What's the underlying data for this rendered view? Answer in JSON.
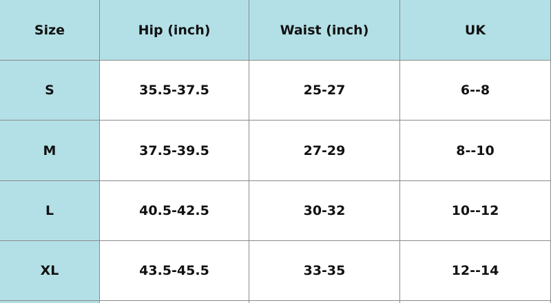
{
  "table": {
    "header": [
      "Size",
      "Hip (inch)",
      "Waist (inch)",
      "UK"
    ],
    "rows": [
      [
        "S",
        "35.5-37.5",
        "25-27",
        "6--8"
      ],
      [
        "M",
        "37.5-39.5",
        "27-29",
        "8--10"
      ],
      [
        "L",
        "40.5-42.5",
        "30-32",
        "10--12"
      ],
      [
        "XL",
        "43.5-45.5",
        "33-35",
        "12--14"
      ]
    ]
  }
}
